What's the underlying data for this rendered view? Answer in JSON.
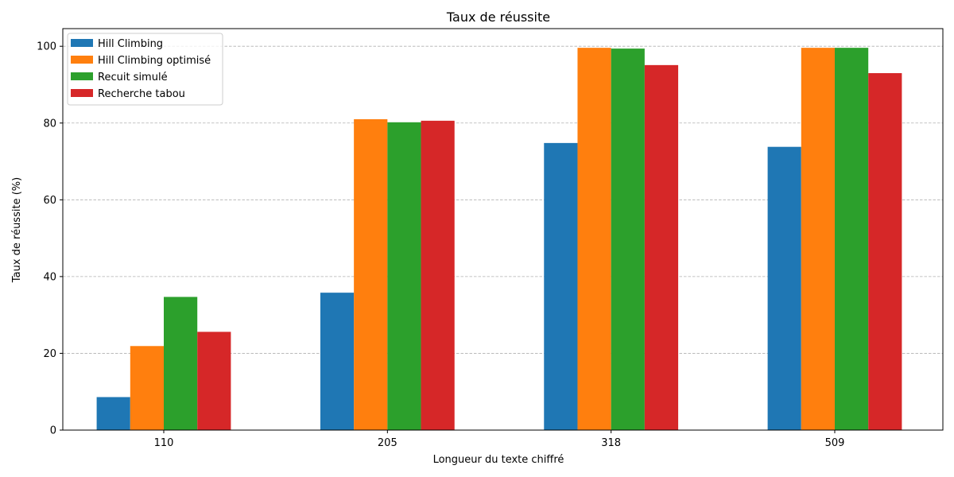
{
  "chart_data": {
    "type": "bar",
    "title": "Taux de réussite",
    "xlabel": "Longueur du texte chiffré",
    "ylabel": "Taux de réussite (%)",
    "categories": [
      "110",
      "205",
      "318",
      "509"
    ],
    "series": [
      {
        "name": "Hill Climbing",
        "color": "#1f77b4",
        "values": [
          8.6,
          35.8,
          74.8,
          73.8
        ]
      },
      {
        "name": "Hill Climbing optimisé",
        "color": "#ff7f0e",
        "values": [
          21.9,
          81.0,
          99.6,
          99.6
        ]
      },
      {
        "name": "Recuit simulé",
        "color": "#2ca02c",
        "values": [
          34.7,
          80.2,
          99.4,
          99.6
        ]
      },
      {
        "name": "Recherche tabou",
        "color": "#d62728",
        "values": [
          25.6,
          80.6,
          95.1,
          93.0
        ]
      }
    ],
    "ylim": [
      0,
      104.6
    ],
    "yticks": [
      0,
      20,
      40,
      60,
      80,
      100
    ],
    "grid": "horizontal-dashed",
    "legend_position": "top-left"
  }
}
